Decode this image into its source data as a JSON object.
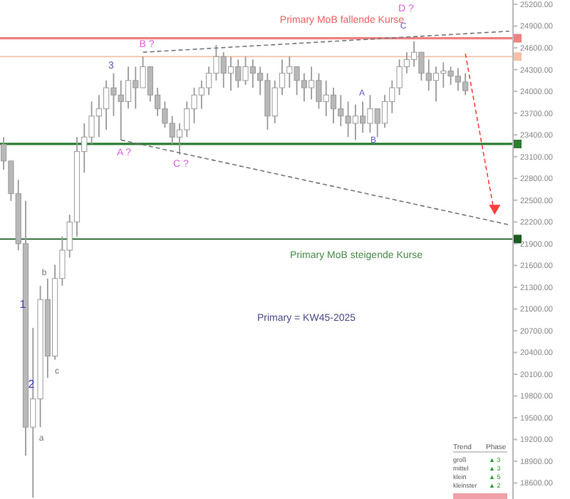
{
  "chart_data": {
    "type": "candlestick",
    "categories": [
      null,
      null,
      null,
      null,
      null,
      null,
      null,
      null,
      null,
      null,
      null,
      null,
      null,
      null,
      null,
      null,
      null,
      null,
      null,
      null,
      null,
      null,
      null,
      null,
      null,
      null,
      null,
      null,
      null,
      null,
      null,
      null,
      null,
      null,
      null,
      null,
      null,
      null,
      null,
      null,
      null,
      null,
      null,
      null,
      null,
      null,
      null,
      null,
      null,
      null,
      null,
      null,
      null,
      null,
      null,
      null,
      null,
      null,
      null,
      null,
      null,
      null,
      null,
      null,
      null,
      null,
      null,
      null,
      null,
      null
    ],
    "ohlc": [
      [
        23270,
        23370,
        22920,
        23040
      ],
      [
        23040,
        23040,
        22490,
        22590
      ],
      [
        22590,
        22780,
        21810,
        21900
      ],
      [
        21900,
        22490,
        18980,
        19370
      ],
      [
        19370,
        20740,
        18400,
        19760
      ],
      [
        19760,
        21320,
        19370,
        21130
      ],
      [
        21130,
        21420,
        20050,
        20350
      ],
      [
        20350,
        21610,
        20300,
        21420
      ],
      [
        21420,
        22000,
        21320,
        21810
      ],
      [
        21810,
        22300,
        21710,
        22200
      ],
      [
        22200,
        23370,
        22000,
        23170
      ],
      [
        23170,
        23560,
        22880,
        23370
      ],
      [
        23370,
        23860,
        23270,
        23660
      ],
      [
        23660,
        23950,
        23370,
        23760
      ],
      [
        23760,
        24150,
        23470,
        24050
      ],
      [
        24050,
        24250,
        23660,
        23950
      ],
      [
        23950,
        24150,
        23330,
        23860
      ],
      [
        23860,
        24340,
        23760,
        24150
      ],
      [
        24150,
        24340,
        23760,
        24050
      ],
      [
        24050,
        24480,
        24050,
        24340
      ],
      [
        24340,
        24340,
        23860,
        23950
      ],
      [
        23950,
        24050,
        23660,
        23760
      ],
      [
        23760,
        23860,
        23500,
        23560
      ],
      [
        23560,
        23660,
        23270,
        23370
      ],
      [
        23370,
        23560,
        23130,
        23470
      ],
      [
        23470,
        23860,
        23370,
        23760
      ],
      [
        23760,
        24050,
        23560,
        23950
      ],
      [
        23950,
        24150,
        23760,
        24050
      ],
      [
        24050,
        24340,
        23950,
        24250
      ],
      [
        24250,
        24640,
        24150,
        24480
      ],
      [
        24480,
        24540,
        24050,
        24250
      ],
      [
        24250,
        24480,
        24010,
        24340
      ],
      [
        24340,
        24440,
        24050,
        24150
      ],
      [
        24150,
        24480,
        24090,
        24340
      ],
      [
        24340,
        24440,
        24050,
        24250
      ],
      [
        24250,
        24340,
        23950,
        24150
      ],
      [
        24150,
        24250,
        23470,
        23660
      ],
      [
        23660,
        24150,
        23560,
        24050
      ],
      [
        24050,
        24440,
        23950,
        24250
      ],
      [
        24250,
        24480,
        24050,
        24340
      ],
      [
        24340,
        24340,
        23950,
        24150
      ],
      [
        24150,
        24250,
        23860,
        24050
      ],
      [
        24050,
        24340,
        23890,
        24150
      ],
      [
        24150,
        24250,
        23760,
        23860
      ],
      [
        23860,
        24150,
        23660,
        23950
      ],
      [
        23950,
        24050,
        23560,
        23760
      ],
      [
        23760,
        23950,
        23520,
        23660
      ],
      [
        23660,
        23860,
        23370,
        23560
      ],
      [
        23560,
        23820,
        23330,
        23660
      ],
      [
        23660,
        23860,
        23430,
        23560
      ],
      [
        23560,
        23950,
        23430,
        23760
      ],
      [
        23760,
        23760,
        23370,
        23560
      ],
      [
        23560,
        23950,
        23500,
        23860
      ],
      [
        23860,
        24150,
        23700,
        24050
      ],
      [
        24050,
        24440,
        23950,
        24340
      ],
      [
        24340,
        24540,
        24250,
        24440
      ],
      [
        24440,
        24690,
        24340,
        24540
      ],
      [
        24540,
        24540,
        24150,
        24250
      ],
      [
        24250,
        24440,
        24010,
        24150
      ],
      [
        24150,
        24340,
        23860,
        24250
      ],
      [
        24250,
        24400,
        24050,
        24280
      ],
      [
        24280,
        24340,
        24090,
        24210
      ],
      [
        24210,
        24320,
        24010,
        24130
      ],
      [
        24130,
        24250,
        23950,
        24010
      ],
      null,
      null,
      null,
      null,
      null,
      null
    ],
    "series": [
      {
        "type": "line",
        "color": "#777777",
        "line_style": "dashed",
        "values": [
          null,
          null,
          null,
          null,
          null,
          null,
          null,
          null,
          null,
          null,
          null,
          null,
          null,
          null,
          null,
          null,
          null,
          null,
          null,
          24540,
          null,
          null,
          null,
          null,
          null,
          null,
          null,
          null,
          null,
          null,
          null,
          null,
          null,
          null,
          null,
          null,
          null,
          null,
          null,
          null,
          null,
          null,
          null,
          null,
          null,
          null,
          null,
          null,
          null,
          null,
          null,
          null,
          null,
          null,
          null,
          null,
          null,
          null,
          null,
          null,
          null,
          null,
          null,
          null,
          null,
          null,
          null,
          null,
          null,
          24830
        ]
      },
      {
        "type": "line",
        "color": "#777777",
        "line_style": "dashed",
        "values": [
          null,
          null,
          null,
          null,
          null,
          null,
          null,
          null,
          null,
          null,
          null,
          null,
          null,
          null,
          null,
          null,
          23330,
          null,
          null,
          null,
          null,
          null,
          null,
          null,
          null,
          null,
          null,
          null,
          null,
          null,
          null,
          null,
          null,
          null,
          null,
          null,
          null,
          null,
          null,
          null,
          null,
          null,
          null,
          null,
          null,
          null,
          null,
          null,
          null,
          null,
          null,
          null,
          null,
          null,
          null,
          null,
          null,
          null,
          null,
          null,
          null,
          null,
          null,
          null,
          null,
          null,
          null,
          null,
          null,
          22160
        ]
      },
      {
        "type": "line",
        "color": "#ff4040",
        "line_style": "dashed",
        "values": [
          null,
          null,
          null,
          null,
          null,
          null,
          null,
          null,
          null,
          null,
          null,
          null,
          null,
          null,
          null,
          null,
          null,
          null,
          null,
          null,
          null,
          null,
          null,
          null,
          null,
          null,
          null,
          null,
          null,
          null,
          null,
          null,
          null,
          null,
          null,
          null,
          null,
          null,
          null,
          null,
          null,
          null,
          null,
          null,
          null,
          null,
          null,
          null,
          null,
          null,
          null,
          null,
          null,
          null,
          null,
          null,
          null,
          null,
          null,
          null,
          null,
          null,
          null,
          24520,
          null,
          null,
          null,
          22300,
          null,
          null
        ]
      }
    ],
    "ylim": [
      18380,
      25260
    ],
    "yticks": [
      {
        "value": 18600,
        "label": "18600.00"
      },
      {
        "value": 18900,
        "label": "18900.00"
      },
      {
        "value": 19200,
        "label": "19200.00"
      },
      {
        "value": 19500,
        "label": "19500.00"
      },
      {
        "value": 19800,
        "label": "19800.00"
      },
      {
        "value": 20100,
        "label": "20100.00"
      },
      {
        "value": 20400,
        "label": "20400.00"
      },
      {
        "value": 20700,
        "label": "20700.00"
      },
      {
        "value": 21000,
        "label": "21000.00"
      },
      {
        "value": 21300,
        "label": "21300.00"
      },
      {
        "value": 21600,
        "label": "21600.00"
      },
      {
        "value": 21900,
        "label": "21900.00"
      },
      {
        "value": 22200,
        "label": "22200.00"
      },
      {
        "value": 22500,
        "label": "22500.00"
      },
      {
        "value": 22800,
        "label": "22800.00"
      },
      {
        "value": 23100,
        "label": "23100.00"
      },
      {
        "value": 23400,
        "label": "23400.00"
      },
      {
        "value": 23700,
        "label": "23700.00"
      },
      {
        "value": 24000,
        "label": "24000.00"
      },
      {
        "value": 24300,
        "label": "24300.00"
      },
      {
        "value": 24600,
        "label": "24600.00"
      },
      {
        "value": 24900,
        "label": "24900.00"
      },
      {
        "value": 25200,
        "label": "25200.00"
      }
    ],
    "ref_lines": [
      {
        "axis": "y",
        "value": 24733,
        "color": "#f08080"
      },
      {
        "axis": "y",
        "value": 24480,
        "color": "#f5c0a8"
      },
      {
        "axis": "y",
        "value": 23275,
        "color": "#2e7d32"
      },
      {
        "axis": "y",
        "value": 21964,
        "color": "#1b5e20"
      }
    ],
    "annotations": [
      "Primary MoB fallende Kurse",
      "Primary MoB steigende Kurse",
      "Primary = KW45-2025",
      "B ?",
      "3",
      "A ?",
      "C ?",
      "A",
      "B",
      "C",
      "D ?",
      "a",
      "1",
      "b",
      "2",
      "c",
      "Trend",
      "Phase",
      "groß",
      "mittel",
      "klein",
      "kleinster",
      "▲ 3",
      "▲ 3",
      "▲ 5",
      "▲ 2"
    ]
  }
}
